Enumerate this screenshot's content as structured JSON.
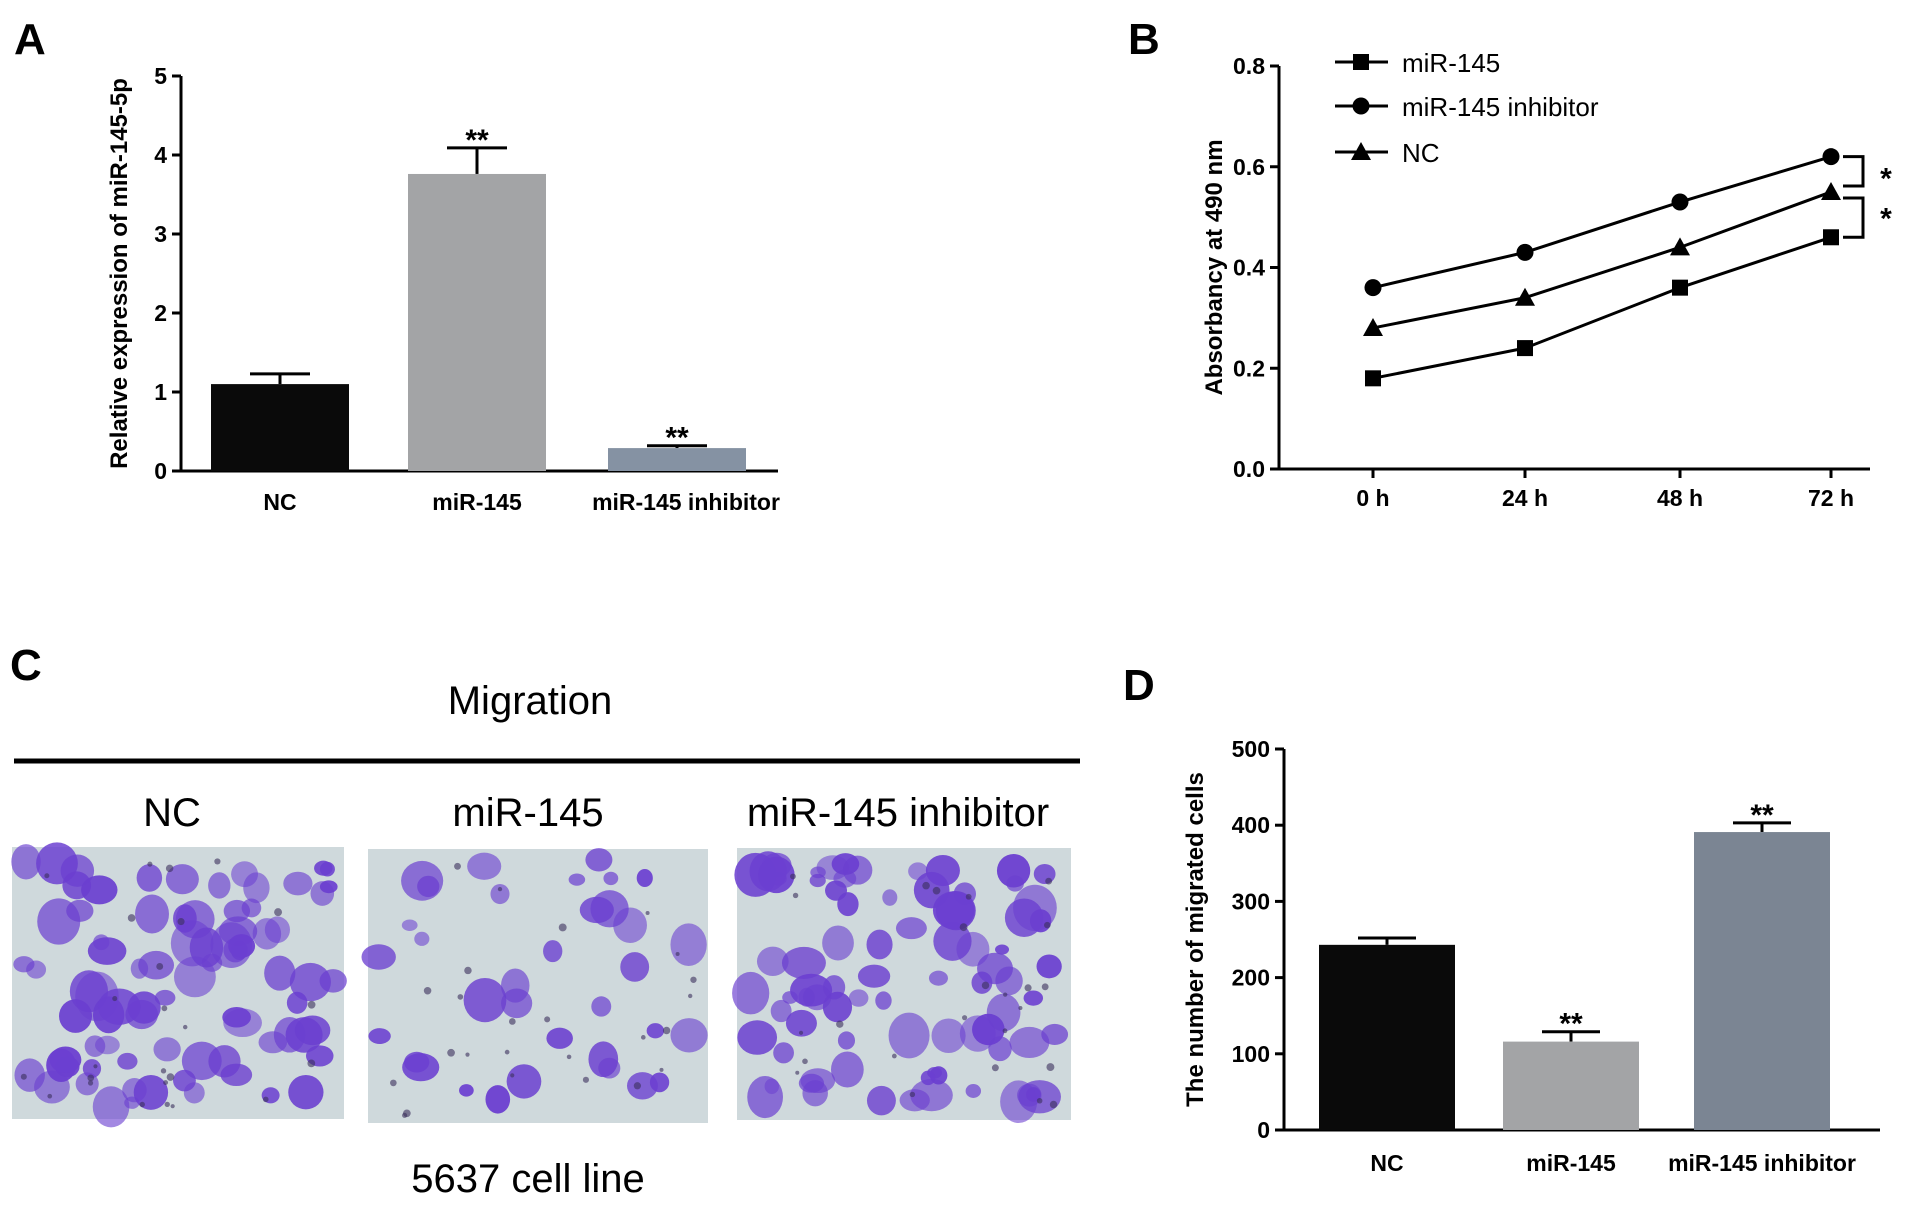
{
  "panel_labels": {
    "a": "A",
    "b": "B",
    "c": "C",
    "d": "D"
  },
  "chart_data": [
    {
      "panel": "A",
      "type": "bar",
      "ylabel": "Relative expression of miR-145-5p",
      "xlabel": "",
      "ylim": [
        0,
        5
      ],
      "yticks": [
        0,
        1,
        2,
        3,
        4,
        5
      ],
      "categories": [
        "NC",
        "miR-145",
        "miR-145 inhibitor"
      ],
      "values": [
        1.1,
        3.76,
        0.29
      ],
      "errors": [
        0.13,
        0.33,
        0.03
      ],
      "significance": [
        "",
        "**",
        "**"
      ],
      "colors": [
        "#0a0a0a",
        "#a3a4a6",
        "#8592a3"
      ]
    },
    {
      "panel": "B",
      "type": "line",
      "ylabel": "Absorbancy at 490 nm",
      "xlabel": "",
      "ylim": [
        0.0,
        0.8
      ],
      "yticks": [
        "0.0",
        "0.2",
        "0.4",
        "0.6",
        "0.8"
      ],
      "x": [
        "0 h",
        "24 h",
        "48 h",
        "72 h"
      ],
      "series": [
        {
          "name": "miR-145",
          "marker": "square",
          "values": [
            0.18,
            0.24,
            0.36,
            0.46
          ]
        },
        {
          "name": "miR-145 inhibitor",
          "marker": "circle",
          "values": [
            0.36,
            0.43,
            0.53,
            0.62
          ]
        },
        {
          "name": "NC",
          "marker": "triangle",
          "values": [
            0.28,
            0.34,
            0.44,
            0.55
          ]
        }
      ],
      "significance": [
        "*",
        "*"
      ],
      "legend": "top-left"
    },
    {
      "panel": "D",
      "type": "bar",
      "ylabel": "The number of migrated cells",
      "xlabel": "",
      "ylim": [
        0,
        500
      ],
      "yticks": [
        0,
        100,
        200,
        300,
        400,
        500
      ],
      "categories": [
        "NC",
        "miR-145",
        "miR-145  inhibitor"
      ],
      "values": [
        243,
        116,
        391
      ],
      "errors": [
        9,
        13,
        12
      ],
      "significance": [
        "",
        "**",
        "**"
      ],
      "colors": [
        "#0a0a0a",
        "#a3a4a6",
        "#7b8593"
      ]
    }
  ],
  "panel_c": {
    "title": "Migration",
    "labels": [
      "NC",
      "miR-145",
      "miR-145 inhibitor"
    ],
    "caption": "5637 cell line",
    "image_bg": "#cfd9dc",
    "cell_color": "#6b3fd0"
  }
}
